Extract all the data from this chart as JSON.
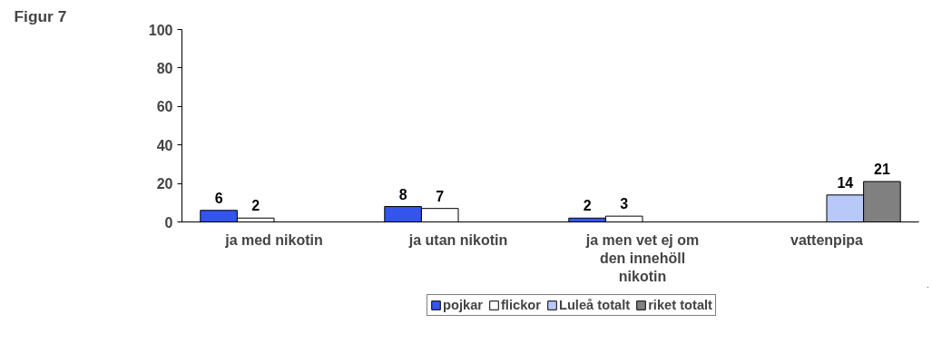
{
  "chart_data": {
    "type": "bar",
    "title": "Figur 7",
    "categories": [
      "ja med nikotin",
      "ja utan nikotin",
      "ja men vet ej om den innehöll nikotin",
      "vattenpipa"
    ],
    "series": [
      {
        "name": "pojkar",
        "color": "#3355ee",
        "values": [
          6,
          8,
          2,
          null
        ]
      },
      {
        "name": "flickor",
        "color": "#ffffff",
        "values": [
          2,
          7,
          3,
          null
        ]
      },
      {
        "name": "Luleå totalt",
        "color": "#b8c8f8",
        "values": [
          null,
          null,
          null,
          14
        ]
      },
      {
        "name": "riket totalt",
        "color": "#808080",
        "values": [
          null,
          null,
          null,
          21
        ]
      }
    ],
    "ylim": [
      0,
      100
    ],
    "yticks": [
      0,
      20,
      40,
      60,
      80,
      100
    ],
    "grid": false,
    "legend": "bottom",
    "data_labels": true
  }
}
